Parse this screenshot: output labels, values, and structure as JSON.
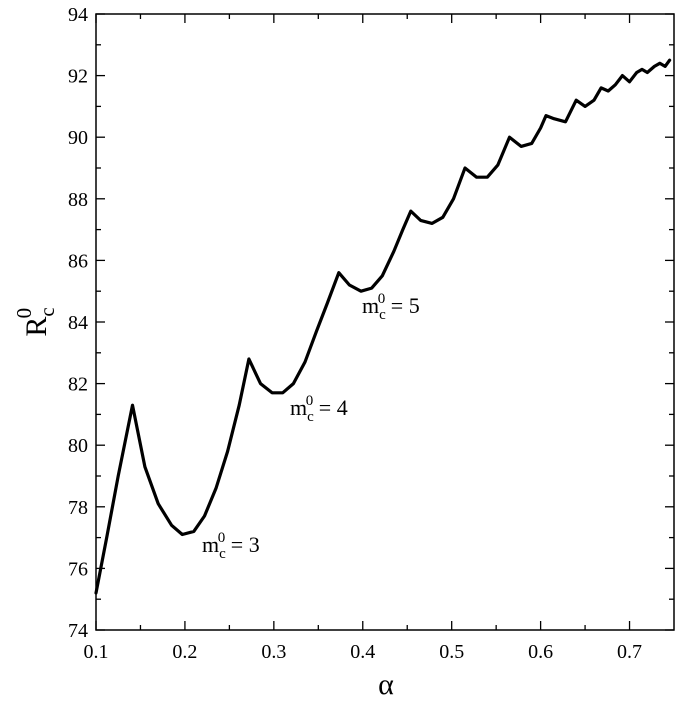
{
  "chart_data": {
    "type": "line",
    "title": "",
    "xlabel": "α",
    "ylabel": {
      "base": "R",
      "sub": "c",
      "sup": "0"
    },
    "xlim": [
      0.1,
      0.75
    ],
    "ylim": [
      74,
      94
    ],
    "xticks": [
      0.1,
      0.2,
      0.3,
      0.4,
      0.5,
      0.6,
      0.7
    ],
    "xtick_labels": [
      "0.1",
      "0.2",
      "0.3",
      "0.4",
      "0.5",
      "0.6",
      "0.7"
    ],
    "yticks": [
      74,
      76,
      78,
      80,
      82,
      84,
      86,
      88,
      90,
      92,
      94
    ],
    "ytick_labels": [
      "74",
      "76",
      "78",
      "80",
      "82",
      "84",
      "86",
      "88",
      "90",
      "92",
      "94"
    ],
    "grid": false,
    "legend": "none",
    "line_color": "#000000",
    "series": [
      {
        "x": [
          0.1,
          0.112,
          0.125,
          0.141,
          0.155,
          0.17,
          0.185,
          0.197,
          0.21,
          0.222,
          0.235,
          0.248,
          0.261,
          0.272,
          0.285,
          0.298,
          0.31,
          0.322,
          0.335,
          0.348,
          0.36,
          0.373,
          0.385,
          0.398,
          0.41,
          0.422,
          0.435,
          0.445,
          0.454,
          0.465,
          0.478,
          0.49,
          0.502,
          0.515,
          0.528,
          0.54,
          0.552,
          0.565,
          0.578,
          0.59,
          0.6,
          0.606,
          0.615,
          0.628,
          0.64,
          0.65,
          0.66,
          0.668,
          0.676,
          0.684,
          0.692,
          0.7,
          0.708,
          0.714,
          0.72,
          0.728,
          0.734,
          0.74,
          0.745
        ],
        "y": [
          75.2,
          77.0,
          79.0,
          81.3,
          79.3,
          78.1,
          77.4,
          77.1,
          77.2,
          77.7,
          78.6,
          79.8,
          81.3,
          82.8,
          82.0,
          81.7,
          81.7,
          82.0,
          82.7,
          83.7,
          84.6,
          85.6,
          85.2,
          85.0,
          85.1,
          85.5,
          86.3,
          87.0,
          87.6,
          87.3,
          87.2,
          87.4,
          88.0,
          89.0,
          88.7,
          88.7,
          89.1,
          90.0,
          89.7,
          89.8,
          90.3,
          90.7,
          90.6,
          90.5,
          91.2,
          91.0,
          91.2,
          91.6,
          91.5,
          91.7,
          92.0,
          91.8,
          92.1,
          92.2,
          92.1,
          92.3,
          92.4,
          92.3,
          92.5
        ]
      }
    ],
    "annotations": [
      {
        "base": "m",
        "sub": "c",
        "sup": "0",
        "rest": " = 3"
      },
      {
        "base": "m",
        "sub": "c",
        "sup": "0",
        "rest": " = 4"
      },
      {
        "base": "m",
        "sub": "c",
        "sup": "0",
        "rest": " = 5"
      }
    ]
  }
}
